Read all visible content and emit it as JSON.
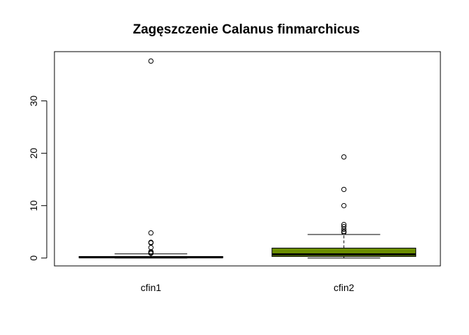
{
  "chart_data": {
    "type": "boxplot",
    "title": "Zagęszczenie Calanus finmarchicus",
    "xlabel": "",
    "ylabel": "",
    "ylim": [
      -1.5,
      39.4
    ],
    "yticks": [
      0,
      10,
      20,
      30
    ],
    "categories": [
      "cfin1",
      "cfin2"
    ],
    "boxes": [
      {
        "name": "cfin1",
        "whisker_low": 0.0,
        "q1": 0.05,
        "median": 0.15,
        "q3": 0.3,
        "whisker_high": 0.8,
        "outliers": [
          37.6,
          4.8,
          3.0,
          2.9,
          2.0,
          1.2,
          1.0,
          0.9
        ],
        "fill": "#ffffff"
      },
      {
        "name": "cfin2",
        "whisker_low": 0.0,
        "q1": 0.3,
        "median": 0.7,
        "q3": 1.9,
        "whisker_high": 4.5,
        "outliers": [
          19.3,
          13.1,
          10.0,
          6.4,
          6.0,
          5.5,
          5.1,
          4.9
        ],
        "fill": "#6b8e00"
      }
    ],
    "grid": false
  }
}
